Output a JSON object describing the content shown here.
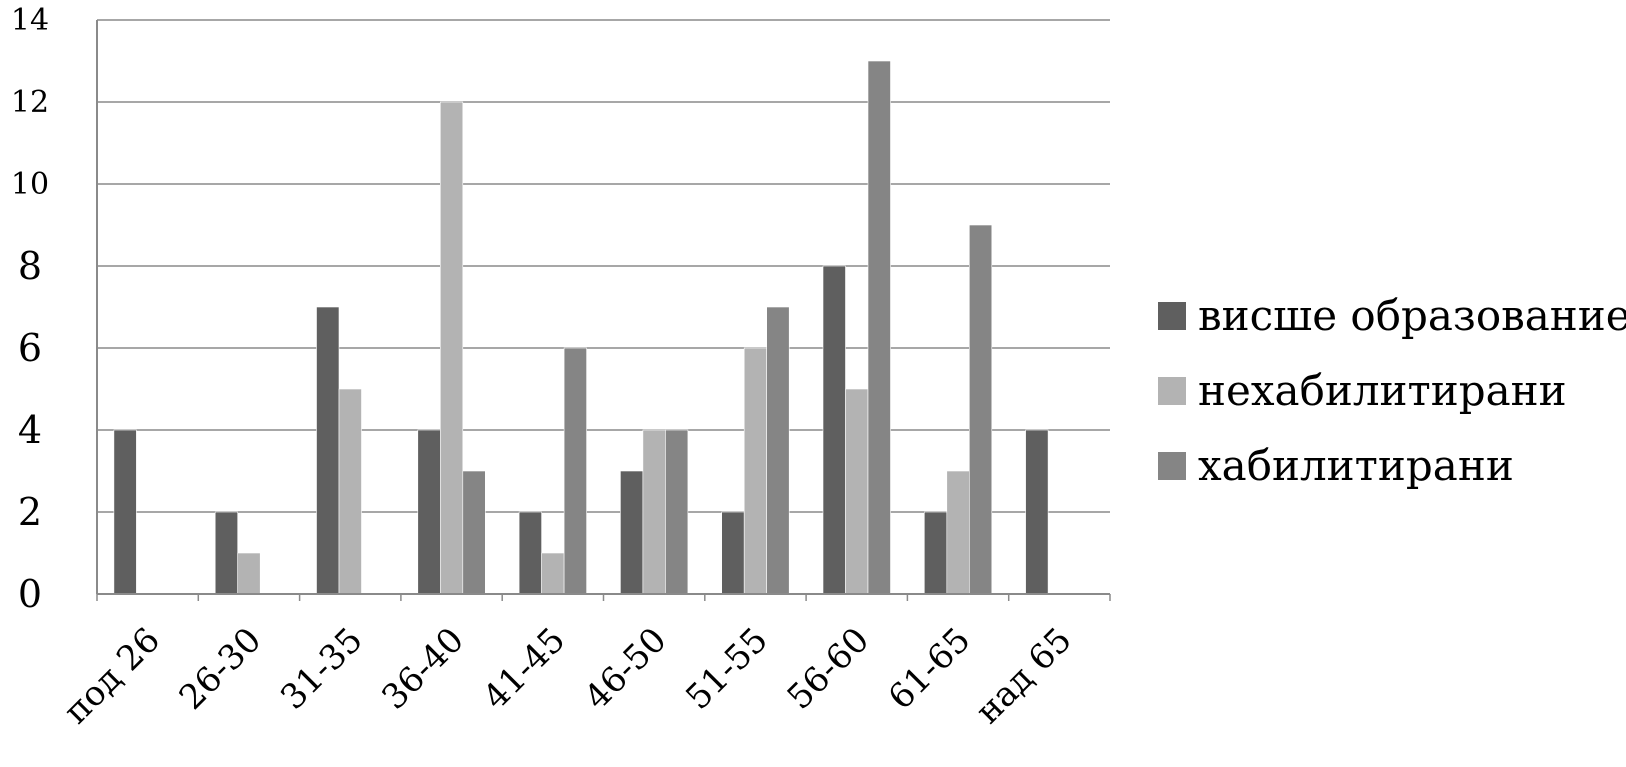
{
  "chart_data": {
    "type": "bar",
    "title": "",
    "xlabel": "",
    "ylabel": "",
    "categories": [
      "под 26",
      "26-30",
      "31-35",
      "36-40",
      "41-45",
      "46-50",
      "51-55",
      "56-60",
      "61-65",
      "над 65"
    ],
    "series": [
      {
        "name": "висше образование",
        "color": "#5f5f5f",
        "values": [
          4,
          2,
          7,
          4,
          2,
          3,
          2,
          8,
          2,
          4
        ]
      },
      {
        "name": "нехабилитирани",
        "color": "#b3b3b3",
        "values": [
          0,
          1,
          5,
          12,
          1,
          4,
          6,
          5,
          3,
          0
        ]
      },
      {
        "name": "хабилитирани",
        "color": "#858585",
        "values": [
          0,
          0,
          0,
          3,
          6,
          4,
          7,
          13,
          9,
          0
        ]
      }
    ],
    "ylim": [
      0,
      14
    ],
    "yticks": [
      "0",
      "2",
      "4",
      "6",
      "8",
      "10",
      "12",
      "14"
    ],
    "grid": true,
    "legend_position": "right"
  }
}
